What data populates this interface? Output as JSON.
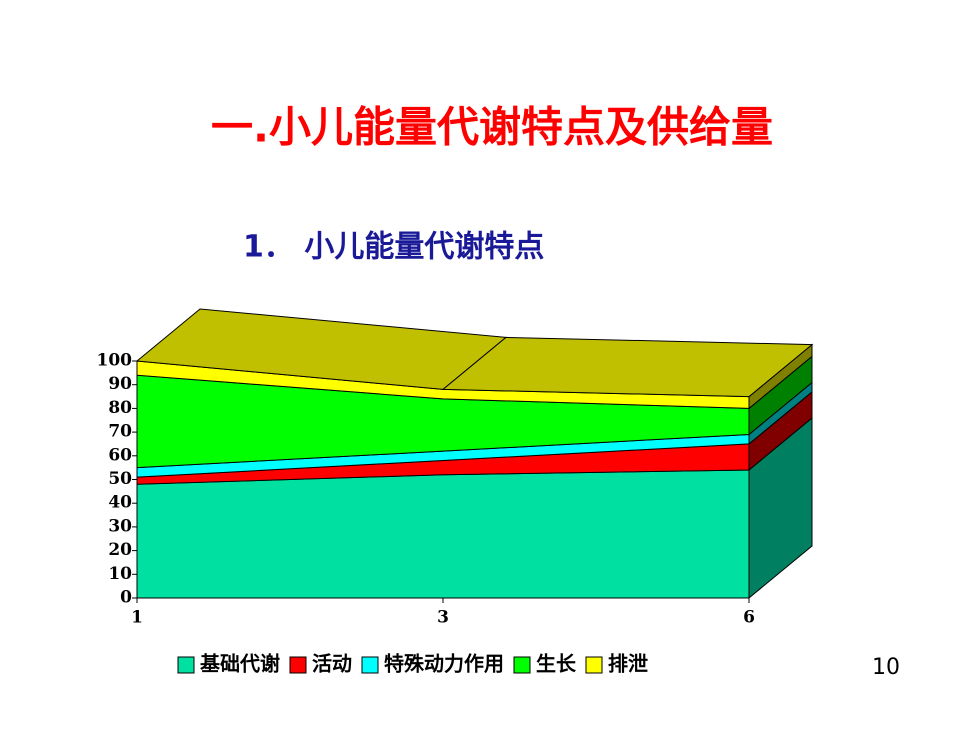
{
  "title": "一.小儿能量代谢特点及供给量",
  "subtitle": "1． 小儿能量代谢特点",
  "page_number": "10",
  "chart_data": {
    "type": "area",
    "stacked": true,
    "categories": [
      "1",
      "3",
      "6"
    ],
    "series": [
      {
        "name": "基础代谢",
        "color": "#00e0a0",
        "side_color": "#008060",
        "values": [
          48,
          52,
          54
        ]
      },
      {
        "name": "活动",
        "color": "#ff0000",
        "side_color": "#800000",
        "values": [
          3,
          6,
          11
        ]
      },
      {
        "name": "特殊动力作用",
        "color": "#00ffff",
        "side_color": "#008080",
        "values": [
          4,
          4,
          4
        ]
      },
      {
        "name": "生长",
        "color": "#00ff00",
        "side_color": "#008000",
        "values": [
          39,
          22,
          11
        ]
      },
      {
        "name": "排泄",
        "color": "#ffff00",
        "side_color": "#808000",
        "values": [
          6,
          4,
          5
        ]
      }
    ],
    "top_color": "#c0c000",
    "ylim": [
      0,
      100
    ],
    "yticks": [
      0,
      10,
      20,
      30,
      40,
      50,
      60,
      70,
      80,
      90,
      100
    ]
  }
}
